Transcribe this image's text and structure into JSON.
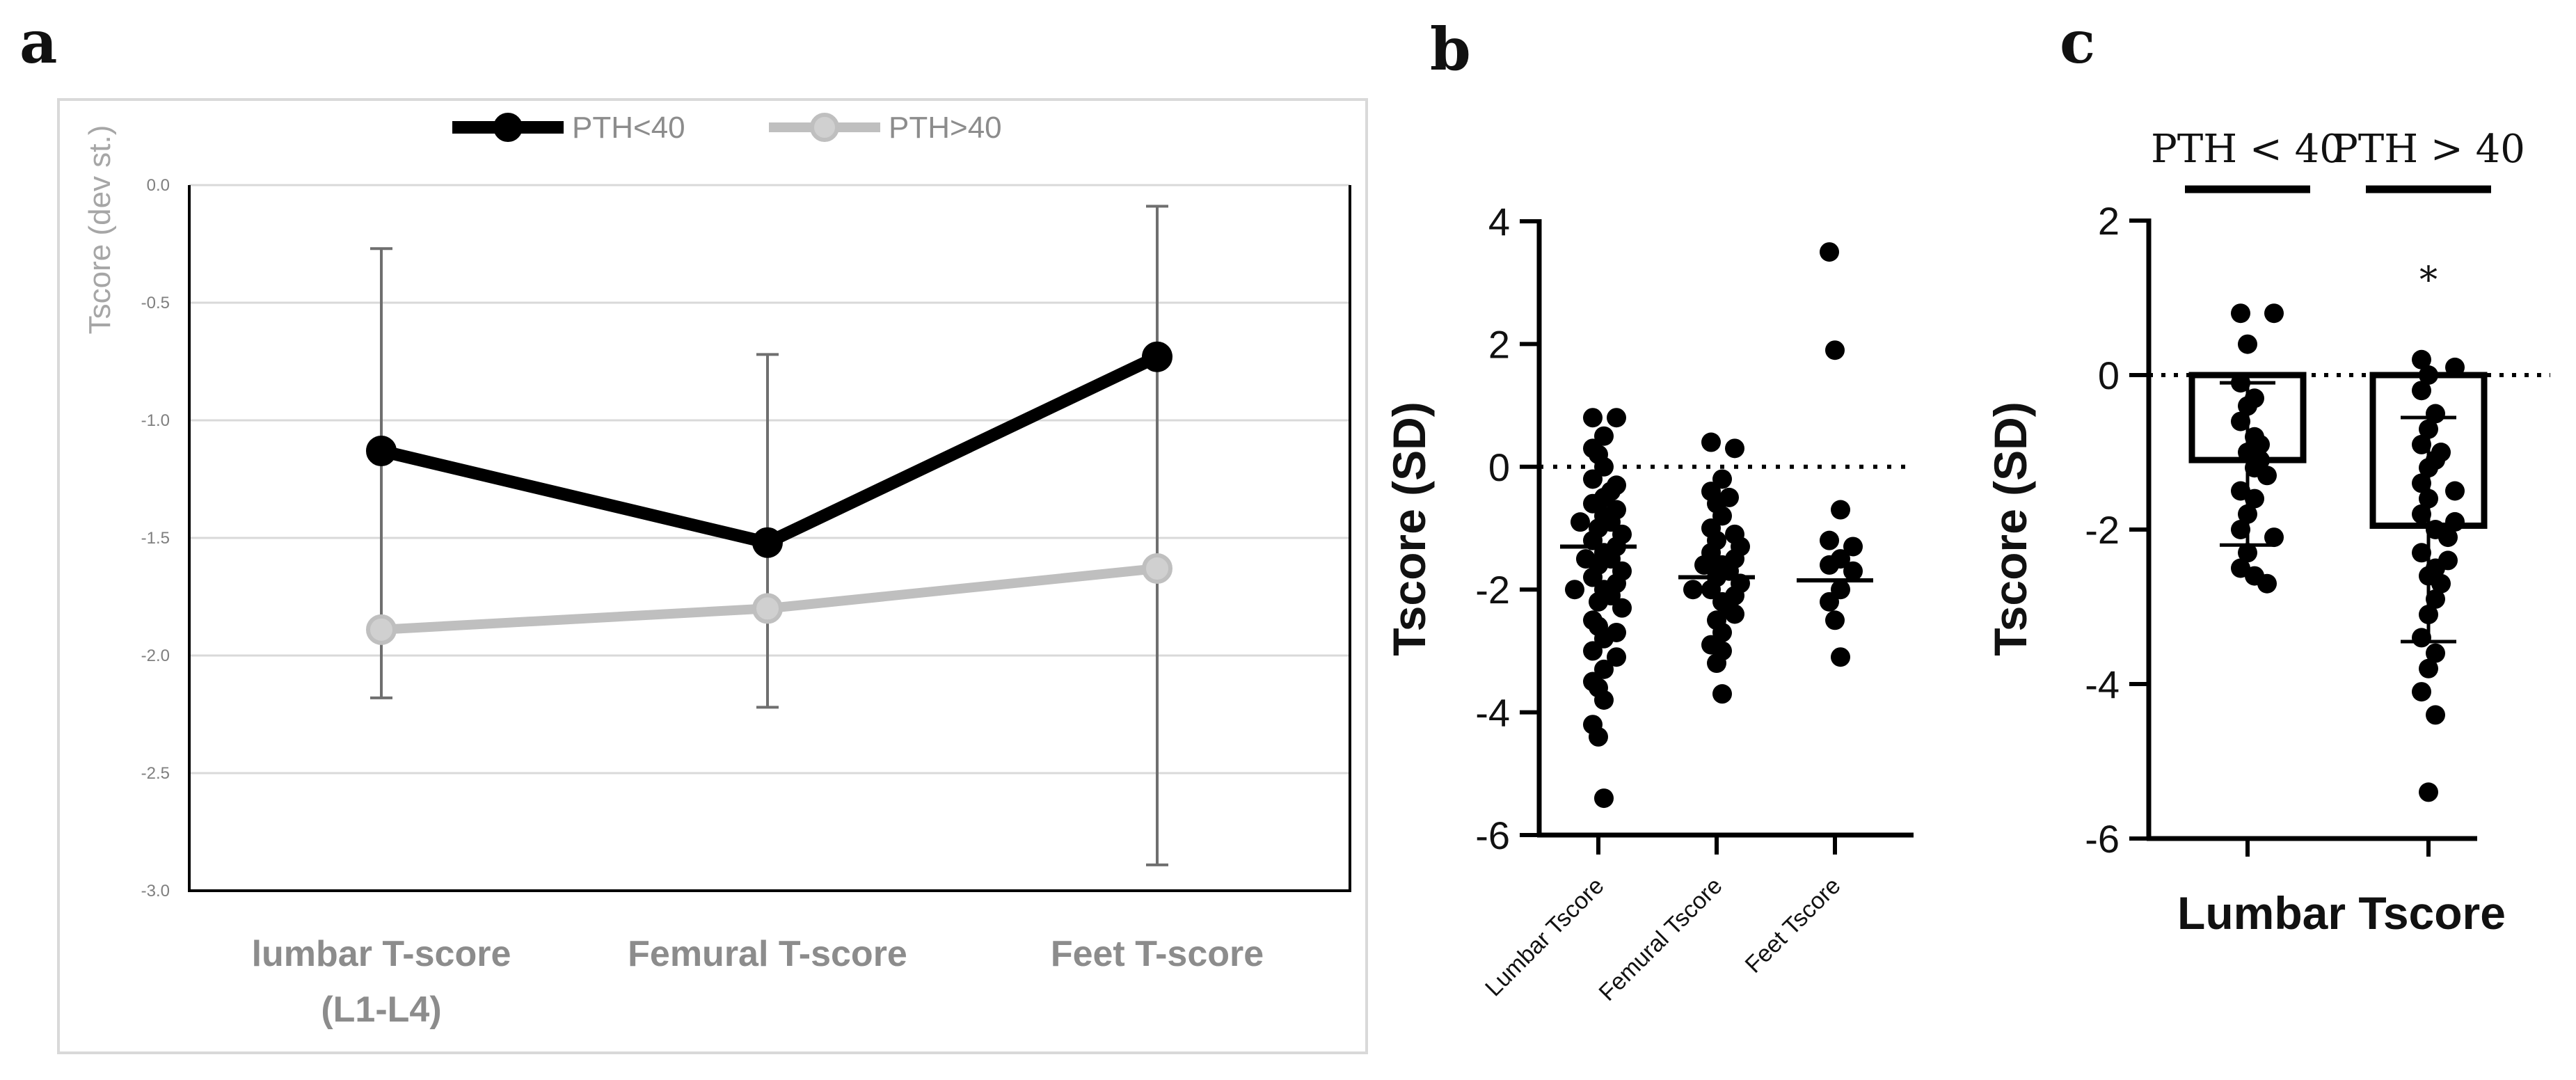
{
  "chart_data": [
    {
      "panel": "a",
      "type": "line",
      "ylabel": "Tscore (dev st.)",
      "ylim": [
        -3.0,
        0.0
      ],
      "yticks": [
        "0.0",
        "-0.5",
        "-1.0",
        "-1.5",
        "-2.0",
        "-2.5",
        "-3.0"
      ],
      "ytick_values": [
        0.0,
        -0.5,
        -1.0,
        -1.5,
        -2.0,
        -2.5,
        -3.0
      ],
      "grid": true,
      "legend_position": "top-center",
      "categories": [
        {
          "line1": "lumbar T-score",
          "line2": "(L1-L4)"
        },
        {
          "line1": "Femural T-score",
          "line2": ""
        },
        {
          "line1": "Feet T-score",
          "line2": ""
        }
      ],
      "series": [
        {
          "name": "PTH<40",
          "color": "#000000",
          "values": [
            -1.13,
            -1.52,
            -0.73
          ]
        },
        {
          "name": "PTH>40",
          "color": "#bfbfbf",
          "values": [
            -1.89,
            -1.8,
            -1.63
          ]
        }
      ],
      "error_bars": [
        {
          "low": -2.18,
          "high": -0.27
        },
        {
          "low": -2.22,
          "high": -0.72
        },
        {
          "low": -2.89,
          "high": -0.09
        }
      ]
    },
    {
      "panel": "b",
      "type": "scatter",
      "ylabel": "Tscore (SD)",
      "ylim": [
        -6,
        4
      ],
      "yticks": [
        "4",
        "2",
        "0",
        "-2",
        "-4",
        "-6"
      ],
      "ytick_values": [
        4,
        2,
        0,
        -2,
        -4,
        -6
      ],
      "reference_line": 0,
      "categories": [
        "Lumbar Tscore",
        "Femural Tscore",
        "Feet Tscore"
      ],
      "series": [
        {
          "name": "Lumbar Tscore",
          "mean": -1.3,
          "values": [
            0.8,
            0.8,
            0.5,
            0.3,
            0.2,
            0.0,
            -0.2,
            -0.3,
            -0.5,
            -0.6,
            -0.7,
            -0.8,
            -0.9,
            -1.0,
            -1.1,
            -1.2,
            -1.3,
            -1.4,
            -1.5,
            -1.6,
            -1.7,
            -1.8,
            -1.9,
            -2.0,
            -2.1,
            -2.2,
            -2.3,
            -2.5,
            -2.6,
            -2.8,
            -3.0,
            -3.1,
            -3.3,
            -3.5,
            -3.6,
            -3.8,
            -4.2,
            -4.4,
            -5.4,
            -0.4,
            -0.9,
            -1.5,
            -2.0,
            -2.7
          ]
        },
        {
          "name": "Femural Tscore",
          "mean": -1.8,
          "values": [
            0.4,
            0.3,
            -0.2,
            -0.4,
            -0.6,
            -0.8,
            -1.0,
            -1.2,
            -1.3,
            -1.4,
            -1.5,
            -1.6,
            -1.7,
            -1.8,
            -1.9,
            -2.0,
            -2.1,
            -2.2,
            -2.3,
            -2.5,
            -2.7,
            -2.9,
            -3.2,
            -3.7,
            -0.5,
            -1.1,
            -1.6,
            -2.0,
            -2.4,
            -3.0
          ]
        },
        {
          "name": "Feet Tscore",
          "mean": -1.85,
          "values": [
            3.5,
            1.9,
            -0.7,
            -1.2,
            -1.3,
            -1.5,
            -1.6,
            -1.7,
            -2.0,
            -2.2,
            -2.5,
            -3.1
          ]
        }
      ]
    },
    {
      "panel": "c",
      "type": "bar",
      "xlabel": "Lumbar Tscore",
      "ylabel": "Tscore (SD)",
      "ylim": [
        -6,
        2
      ],
      "yticks": [
        "2",
        "0",
        "-2",
        "-4",
        "-6"
      ],
      "ytick_values": [
        2,
        0,
        -2,
        -4,
        -6
      ],
      "reference_line": 0,
      "categories": [
        "PTH < 40",
        "PTH > 40"
      ],
      "significance": [
        "",
        "*"
      ],
      "series": [
        {
          "name": "PTH < 40",
          "value": -1.1,
          "sd_low": -2.2,
          "sd_high": -0.1,
          "points": [
            0.8,
            0.8,
            0.4,
            -0.1,
            -0.3,
            -0.4,
            -0.6,
            -0.8,
            -1.0,
            -1.1,
            -1.2,
            -1.3,
            -1.5,
            -1.6,
            -1.8,
            -2.0,
            -2.1,
            -2.3,
            -2.5,
            -2.6,
            -2.7,
            -0.9
          ]
        },
        {
          "name": "PTH > 40",
          "value": -1.95,
          "sd_low": -3.45,
          "sd_high": -0.55,
          "points": [
            0.2,
            0.1,
            0.0,
            -0.2,
            -0.5,
            -0.7,
            -0.9,
            -1.1,
            -1.2,
            -1.4,
            -1.5,
            -1.6,
            -1.8,
            -2.0,
            -2.1,
            -2.3,
            -2.5,
            -2.6,
            -2.7,
            -2.9,
            -3.1,
            -3.4,
            -3.6,
            -3.8,
            -4.1,
            -4.4,
            -5.4,
            -1.0,
            -1.9,
            -2.4
          ]
        }
      ]
    }
  ],
  "panels": {
    "a": "a",
    "b": "b",
    "c": "c"
  }
}
